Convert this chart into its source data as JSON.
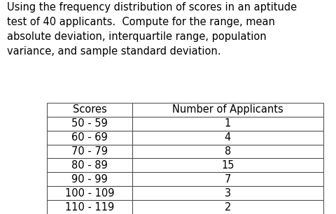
{
  "title_text": "Using the frequency distribution of scores in an aptitude\ntest of 40 applicants.  Compute for the range, mean\nabsolute deviation, interquartile range, population\nvariance, and sample standard deviation.",
  "col_headers": [
    "Scores",
    "Number of Applicants"
  ],
  "rows": [
    [
      "50 - 59",
      "1"
    ],
    [
      "60 - 69",
      "4"
    ],
    [
      "70 - 79",
      "8"
    ],
    [
      "80 - 89",
      "15"
    ],
    [
      "90 - 99",
      "7"
    ],
    [
      "100 - 109",
      "3"
    ],
    [
      "110 - 119",
      "2"
    ]
  ],
  "bg_color": "#ffffff",
  "text_color": "#000000",
  "title_fontsize": 10.5,
  "table_fontsize": 10.5
}
